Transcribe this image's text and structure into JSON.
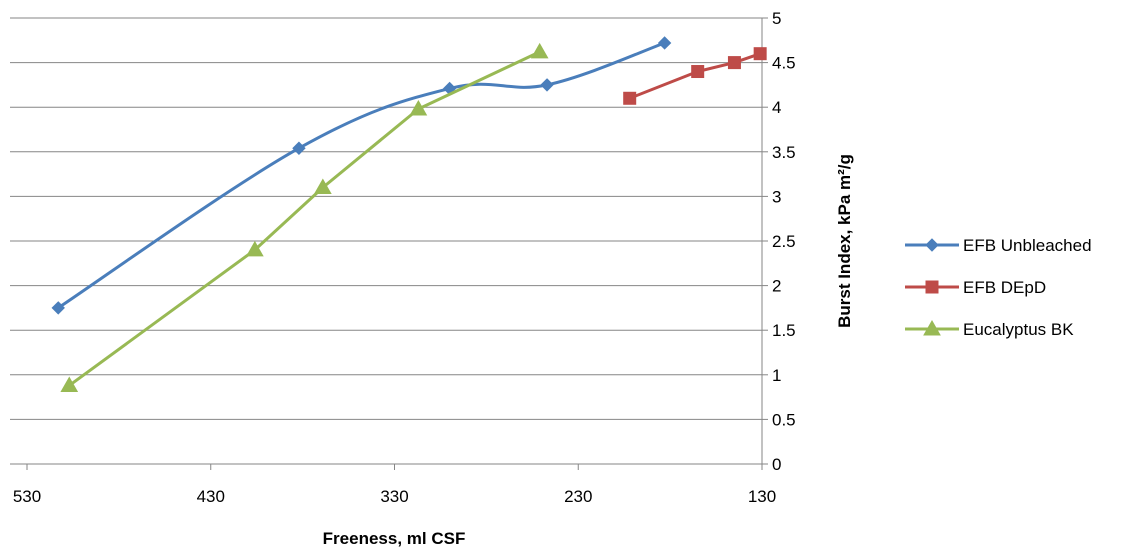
{
  "chart_data": {
    "type": "scatter",
    "title": "",
    "xlabel": "Freeness, ml CSF",
    "ylabel": "Burst Index, kPa m²/g",
    "x_reversed": true,
    "xlim": [
      130,
      540
    ],
    "ylim": [
      0,
      5
    ],
    "x_ticks": [
      530,
      430,
      330,
      230,
      130
    ],
    "y_ticks": [
      0,
      0.5,
      1,
      1.5,
      2,
      2.5,
      3,
      3.5,
      4,
      4.5,
      5
    ],
    "y_axis_position": "right",
    "grid": "horizontal",
    "legend_position": "right",
    "series": [
      {
        "name": "EFB Unbleached",
        "color": "#4a7ebb",
        "marker": "diamond",
        "smooth": true,
        "points": [
          [
            513,
            1.75
          ],
          [
            382,
            3.54
          ],
          [
            300,
            4.21
          ],
          [
            247,
            4.25
          ],
          [
            183,
            4.72
          ]
        ]
      },
      {
        "name": "EFB DEpD",
        "color": "#be4b48",
        "marker": "square",
        "smooth": false,
        "points": [
          [
            202,
            4.1
          ],
          [
            165,
            4.4
          ],
          [
            145,
            4.5
          ],
          [
            131,
            4.6
          ]
        ]
      },
      {
        "name": "Eucalyptus BK",
        "color": "#98b954",
        "marker": "triangle",
        "smooth": false,
        "points": [
          [
            507,
            0.88
          ],
          [
            406,
            2.4
          ],
          [
            369,
            3.1
          ],
          [
            317,
            3.98
          ],
          [
            251,
            4.62
          ]
        ]
      }
    ]
  }
}
